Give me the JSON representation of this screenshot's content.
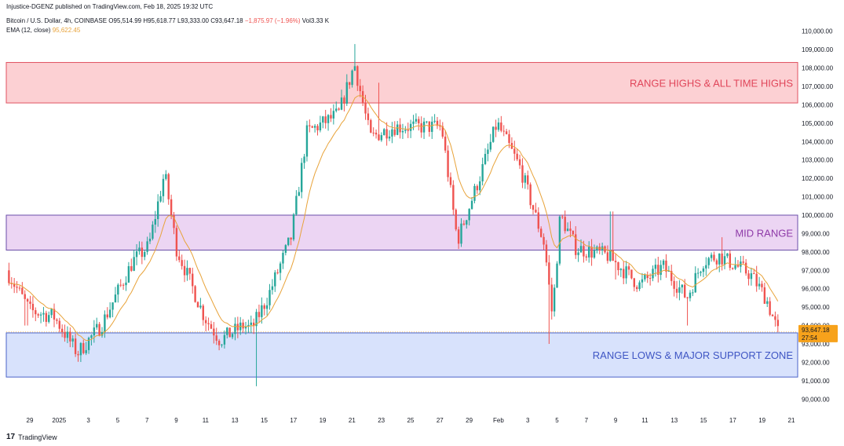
{
  "header": {
    "published": "Injustice-DGENZ published on TradingView.com, Feb 18, 2025 19:32 UTC",
    "symbol_line": "Bitcoin / U.S. Dollar, 4h, COINBASE",
    "open": "O95,514.99",
    "high": "H95,618.77",
    "low": "L93,333.00",
    "close": "C93,647.18",
    "change": "−1,875.97 (−1.96%)",
    "volume": "Vol3.33 K",
    "ema_label": "EMA (12, close)",
    "ema_value": "95,622.45"
  },
  "footer": {
    "brand": "TradingView",
    "logo": "17"
  },
  "price_tag": {
    "price": "93,647.18",
    "countdown": "27:54"
  },
  "colors": {
    "up": "#26a69a",
    "down": "#ef5350",
    "ema": "#e8a33a",
    "zone_high_fill": "#fcd0d3",
    "zone_high_stroke": "#e05260",
    "zone_mid_fill": "#ecd5f3",
    "zone_mid_stroke": "#6a4ea8",
    "zone_low_fill": "#d8e2fc",
    "zone_low_stroke": "#4a63c8",
    "price_tag": "#f7a21b"
  },
  "chart_data": {
    "type": "candlestick",
    "timeframe": "4h",
    "ylim": [
      89500,
      110500
    ],
    "y_ticks": [
      "110,000.00",
      "109,000.00",
      "108,000.00",
      "107,000.00",
      "106,000.00",
      "105,000.00",
      "104,000.00",
      "103,000.00",
      "102,000.00",
      "101,000.00",
      "100,000.00",
      "99,000.00",
      "98,000.00",
      "97,000.00",
      "96,000.00",
      "95,000.00",
      "94,000.00",
      "93,000.00",
      "92,000.00",
      "91,000.00",
      "90,000.00"
    ],
    "x_ticks": [
      "29",
      "2025",
      "3",
      "5",
      "7",
      "9",
      "11",
      "13",
      "15",
      "17",
      "19",
      "21",
      "23",
      "25",
      "27",
      "29",
      "Feb",
      "3",
      "5",
      "7",
      "9",
      "11",
      "13",
      "15",
      "17",
      "19",
      "21"
    ],
    "zones": [
      {
        "label": "RANGE HIGHS & ALL TIME HIGHS",
        "from": 106100,
        "to": 108300
      },
      {
        "label": "MID RANGE",
        "from": 98100,
        "to": 100000
      },
      {
        "label": "RANGE LOWS & MAJOR SUPPORT ZONE",
        "from": 91200,
        "to": 93600
      }
    ],
    "path_points": [
      [
        0,
        97000
      ],
      [
        0.03,
        94800
      ],
      [
        0.06,
        94500
      ],
      [
        0.09,
        92500
      ],
      [
        0.12,
        94000
      ],
      [
        0.16,
        97500
      ],
      [
        0.18,
        98300
      ],
      [
        0.2,
        102300
      ],
      [
        0.215,
        98200
      ],
      [
        0.25,
        94500
      ],
      [
        0.27,
        93200
      ],
      [
        0.3,
        94000
      ],
      [
        0.31,
        93800
      ],
      [
        0.33,
        95500
      ],
      [
        0.36,
        98800
      ],
      [
        0.38,
        104500
      ],
      [
        0.42,
        105500
      ],
      [
        0.44,
        108200
      ],
      [
        0.46,
        104200
      ],
      [
        0.49,
        104800
      ],
      [
        0.52,
        104800
      ],
      [
        0.55,
        104800
      ],
      [
        0.57,
        98600
      ],
      [
        0.6,
        102300
      ],
      [
        0.62,
        105000
      ],
      [
        0.65,
        102500
      ],
      [
        0.68,
        98400
      ],
      [
        0.69,
        94500
      ],
      [
        0.7,
        100000
      ],
      [
        0.72,
        98200
      ],
      [
        0.76,
        97800
      ],
      [
        0.8,
        96200
      ],
      [
        0.83,
        97200
      ],
      [
        0.86,
        95500
      ],
      [
        0.88,
        97500
      ],
      [
        0.9,
        97800
      ],
      [
        0.94,
        96800
      ],
      [
        0.96,
        95500
      ],
      [
        0.975,
        93650
      ]
    ],
    "spike_points": [
      [
        0.025,
        94000
      ],
      [
        0.315,
        90700
      ],
      [
        0.44,
        109300
      ],
      [
        0.47,
        107200
      ],
      [
        0.685,
        93000
      ],
      [
        0.765,
        100200
      ],
      [
        0.77,
        96500
      ],
      [
        0.86,
        94000
      ],
      [
        0.905,
        98800
      ]
    ],
    "last_price": 93647.18
  }
}
